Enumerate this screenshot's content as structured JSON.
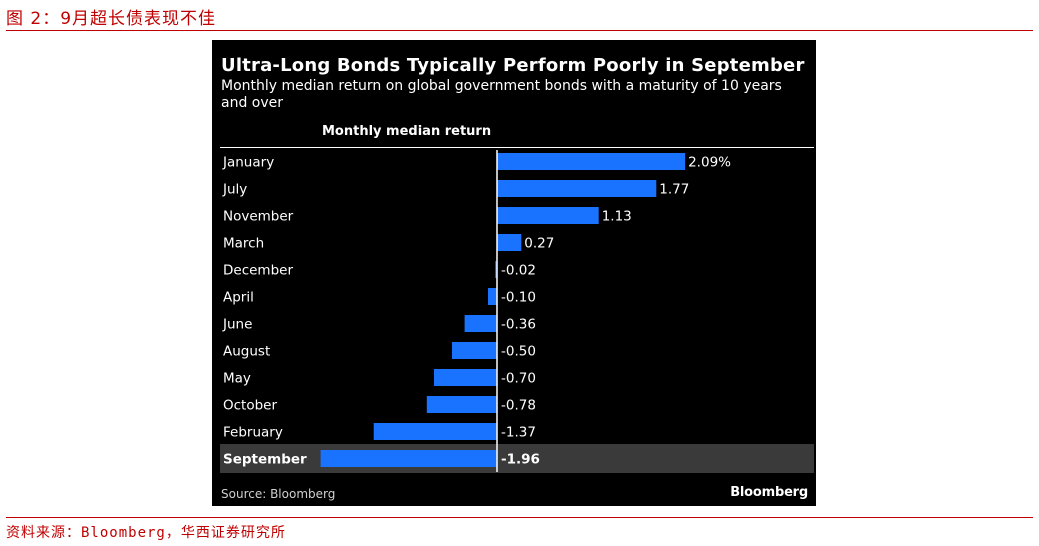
{
  "figure": {
    "title": "图 2：9月超长债表现不佳",
    "source": "资料来源：Bloomberg，华西证券研究所"
  },
  "panel": {
    "source_label": "Source: Bloomberg",
    "brand": "Bloomberg",
    "colors": {
      "background": "#000000",
      "bar": "#1a73ff",
      "highlight_row": "#3a3a3a",
      "text": "#ffffff"
    }
  },
  "chart_data": {
    "type": "bar",
    "orientation": "horizontal",
    "title": "Ultra-Long Bonds Typically Perform Poorly in September",
    "subtitle": "Monthly median return on global government bonds with a maturity of 10 years and over",
    "column_header": "Monthly median return",
    "unit": "%",
    "highlight": "September",
    "categories": [
      "January",
      "July",
      "November",
      "March",
      "December",
      "April",
      "June",
      "August",
      "May",
      "October",
      "February",
      "September"
    ],
    "values": [
      2.09,
      1.77,
      1.13,
      0.27,
      -0.02,
      -0.1,
      -0.36,
      -0.5,
      -0.7,
      -0.78,
      -1.37,
      -1.96
    ],
    "value_labels": [
      "2.09%",
      "1.77",
      "1.13",
      "0.27",
      "-0.02",
      "-0.10",
      "-0.36",
      "-0.50",
      "-0.70",
      "-0.78",
      "-1.37",
      "-1.96"
    ]
  }
}
